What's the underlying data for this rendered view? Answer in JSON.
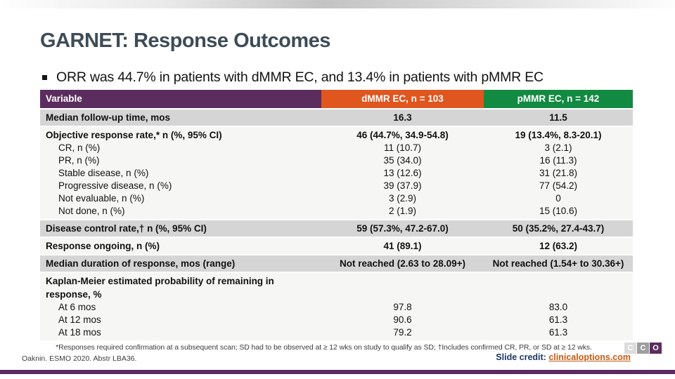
{
  "slide": {
    "title": "GARNET: Response Outcomes",
    "bullet": "ORR was 44.7% in patients with dMMR EC, and 13.4% in patients with pMMR EC"
  },
  "colors": {
    "title_text": "#3d4c57",
    "header_variable_bg": "#5b2d5f",
    "header_dmmr_bg": "#e0561f",
    "header_pmmr_bg": "#128a42",
    "row_gray_bg": "#d5d5d5",
    "row_light_bg": "#f6f6f4",
    "bottom_bar": "#5b2a5e",
    "credit_label_text": "#1f3864",
    "credit_link_text": "#c55a11"
  },
  "table": {
    "headers": [
      "Variable",
      "dMMR EC, n = 103",
      "pMMR EC, n = 142"
    ],
    "rows": [
      {
        "label": "Median follow-up time, mos",
        "dmmr": "16.3",
        "pmmr": "11.5"
      },
      {
        "label": "Objective response rate,* n (%, 95% CI)",
        "dmmr": "46 (44.7%, 34.9-54.8)",
        "pmmr": "19 (13.4%, 8.3-20.1)",
        "subrows": [
          {
            "label": "CR, n (%)",
            "dmmr": "11 (10.7)",
            "pmmr": "3 (2.1)"
          },
          {
            "label": "PR, n (%)",
            "dmmr": "35 (34.0)",
            "pmmr": "16 (11.3)"
          },
          {
            "label": "Stable disease, n (%)",
            "dmmr": "13 (12.6)",
            "pmmr": "31 (21.8)"
          },
          {
            "label": "Progressive disease, n (%)",
            "dmmr": "39 (37.9)",
            "pmmr": "77 (54.2)"
          },
          {
            "label": "Not evaluable, n (%)",
            "dmmr": "3 (2.9)",
            "pmmr": "0"
          },
          {
            "label": "Not done, n (%)",
            "dmmr": "2 (1.9)",
            "pmmr": "15 (10.6)"
          }
        ]
      },
      {
        "label": "Disease control rate,† n (%, 95% CI)",
        "dmmr": "59 (57.3%, 47.2-67.0)",
        "pmmr": "50 (35.2%, 27.4-43.7)"
      },
      {
        "label": "Response ongoing, n (%)",
        "dmmr": "41 (89.1)",
        "pmmr": "12 (63.2)"
      },
      {
        "label": "Median duration of response, mos (range)",
        "dmmr": "Not reached (2.63 to 28.09+)",
        "pmmr": "Not reached (1.54+ to 30.36+)"
      },
      {
        "label": "Kaplan-Meier estimated probability of remaining in response, %",
        "dmmr": "",
        "pmmr": "",
        "subrows": [
          {
            "label": "At 6 mos",
            "dmmr": "97.8",
            "pmmr": "83.0"
          },
          {
            "label": "At 12 mos",
            "dmmr": "90.6",
            "pmmr": "61.3"
          },
          {
            "label": "At 18 mos",
            "dmmr": "79.2",
            "pmmr": "61.3"
          }
        ]
      }
    ]
  },
  "footer": {
    "footnote": "*Responses required confirmation at a subsequent scan; SD had to be observed at ≥ 12 wks on study to qualify as SD; †Includes confirmed CR, PR, or SD at ≥ 12 wks.",
    "citation": "Oaknin. ESMO 2020. Abstr LBA36.",
    "credit_label": "Slide credit:",
    "credit_link": "clinicaloptions.com",
    "logo_letters": [
      "C",
      "C",
      "O"
    ]
  }
}
